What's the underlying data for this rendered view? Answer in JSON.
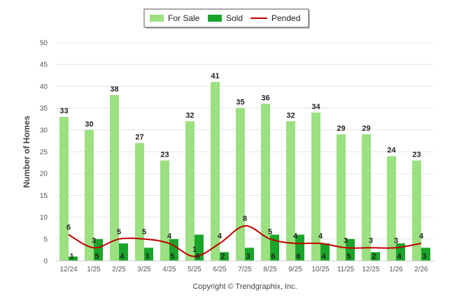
{
  "chart_data": {
    "type": "bar",
    "ylabel": "Number of Homes",
    "xlabel": "",
    "ylim": [
      0,
      50
    ],
    "yticks": [
      0,
      5,
      10,
      15,
      20,
      25,
      30,
      35,
      40,
      45,
      50
    ],
    "grid": true,
    "legend_position": "top-center",
    "categories": [
      "12/24",
      "1/25",
      "2/25",
      "3/25",
      "4/25",
      "5/25",
      "6/25",
      "7/25",
      "8/25",
      "9/25",
      "10/25",
      "11/25",
      "12/25",
      "1/26",
      "2/26"
    ],
    "series": [
      {
        "name": "For Sale",
        "kind": "bar",
        "color": "#9be081",
        "values": [
          33,
          30,
          38,
          27,
          23,
          32,
          41,
          35,
          36,
          32,
          34,
          29,
          29,
          24,
          23
        ]
      },
      {
        "name": "Sold",
        "kind": "bar",
        "color": "#1aa52a",
        "values": [
          1,
          5,
          4,
          3,
          5,
          6,
          2,
          3,
          6,
          6,
          4,
          5,
          2,
          4,
          3
        ]
      },
      {
        "name": "Pended",
        "kind": "line",
        "color": "#c00000",
        "values": [
          6,
          3,
          5,
          5,
          4,
          1,
          4,
          8,
          5,
          4,
          4,
          3,
          3,
          3,
          4
        ]
      }
    ],
    "footer": "Copyright © Trendgraphix, Inc."
  }
}
